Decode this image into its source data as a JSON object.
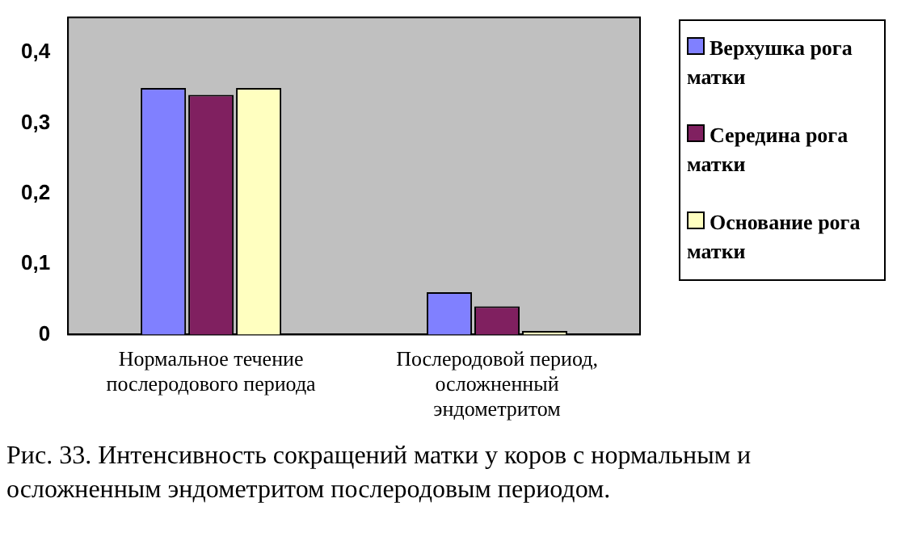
{
  "chart_data": {
    "type": "bar",
    "categories": [
      "Нормальное течение послеродового периода",
      "Послеродовой период, осложненный эндометритом"
    ],
    "series": [
      {
        "name": "Верхушка рога матки",
        "color": "#8080ff",
        "values": [
          0.35,
          0.06
        ]
      },
      {
        "name": "Середина рога матки",
        "color": "#802060",
        "values": [
          0.34,
          0.04
        ]
      },
      {
        "name": "Основание рога матки",
        "color": "#ffffc0",
        "values": [
          0.35,
          0.005
        ]
      }
    ],
    "ylim": [
      0,
      0.45
    ],
    "yticks": [
      {
        "value": 0,
        "label": "0"
      },
      {
        "value": 0.1,
        "label": "0,1"
      },
      {
        "value": 0.2,
        "label": "0,2"
      },
      {
        "value": 0.3,
        "label": "0,3"
      },
      {
        "value": 0.4,
        "label": "0,4"
      }
    ],
    "grid": false,
    "legend": "right",
    "annotations": [
      "Рис. 33. Интенсивность сокращений матки у коров с нормальным и осложненным эндометритом послеродовым периодом."
    ]
  }
}
